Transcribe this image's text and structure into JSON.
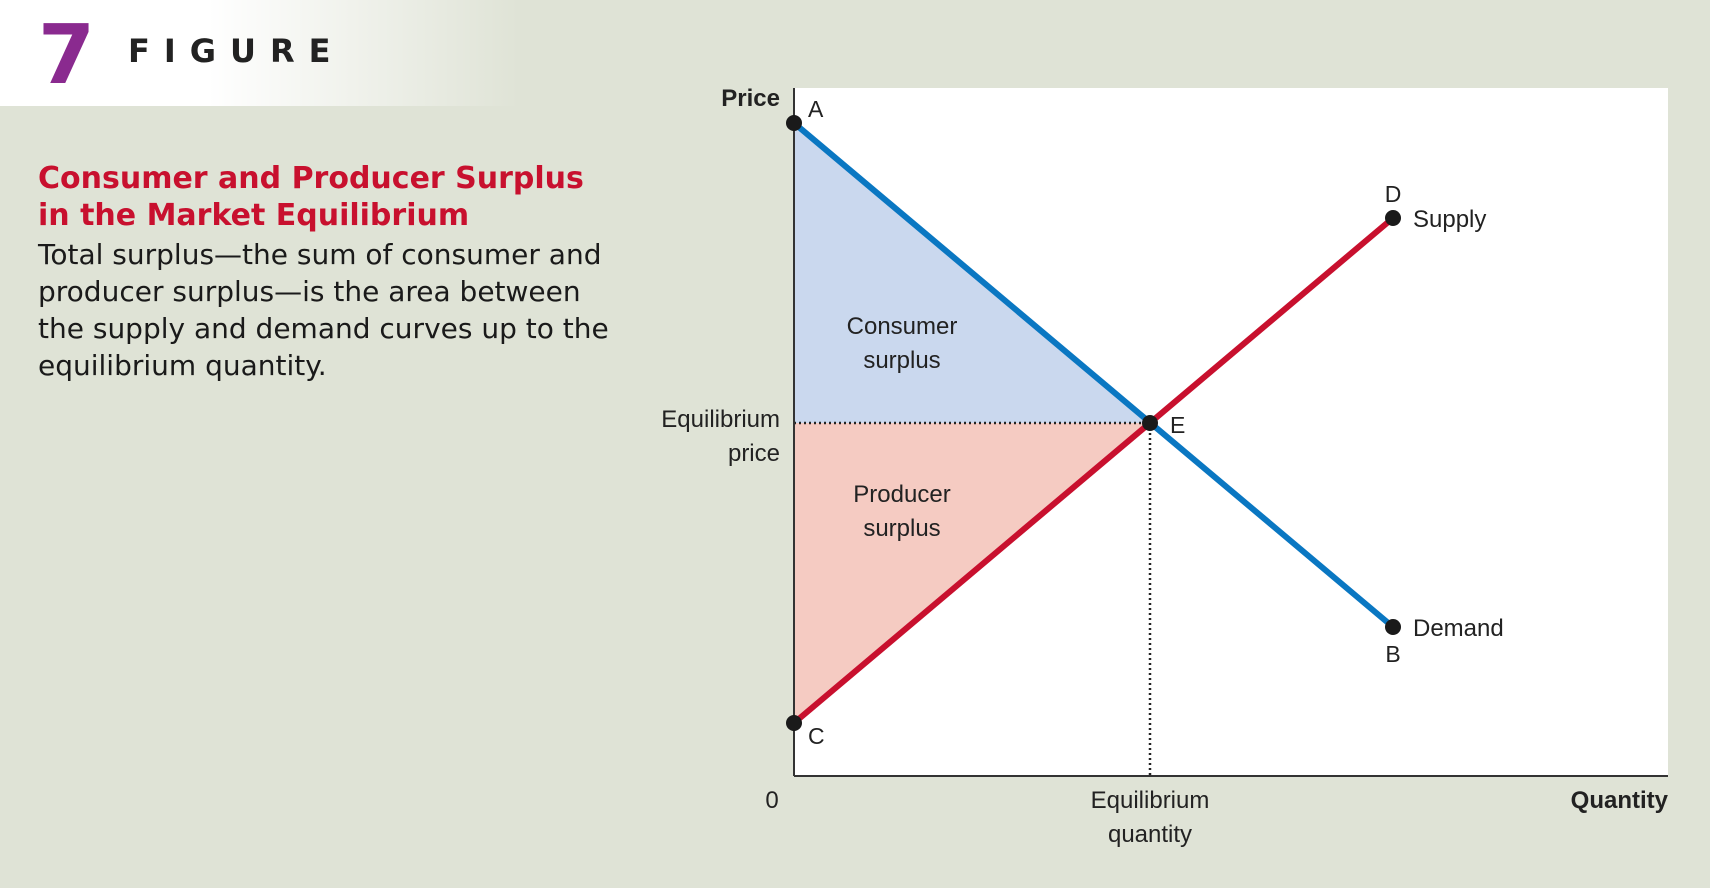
{
  "figure": {
    "number": "7",
    "label": "FIGURE"
  },
  "caption": {
    "title": "Consumer and Producer Surplus\nin the Market Equilibrium",
    "body": "Total surplus—the sum of consumer and producer surplus—is the area between the supply and demand curves up to the equilibrium quantity."
  },
  "diagram": {
    "y_axis_label": "Price",
    "x_axis_label": "Quantity",
    "origin_label": "0",
    "eq_price_label": [
      "Equilibrium",
      "price"
    ],
    "eq_quantity_label": [
      "Equilibrium",
      "quantity"
    ],
    "consumer_surplus_label": [
      "Consumer",
      "surplus"
    ],
    "producer_surplus_label": [
      "Producer",
      "surplus"
    ],
    "supply_label": "Supply",
    "demand_label": "Demand",
    "points": {
      "a": "A",
      "b": "B",
      "c": "C",
      "d": "D",
      "e": "E"
    },
    "colors": {
      "demand": "#0a77c2",
      "supply": "#c8102e",
      "consumer_surplus": "#cad8ee",
      "producer_surplus": "#f5cbc2",
      "axis": "#333333"
    }
  }
}
